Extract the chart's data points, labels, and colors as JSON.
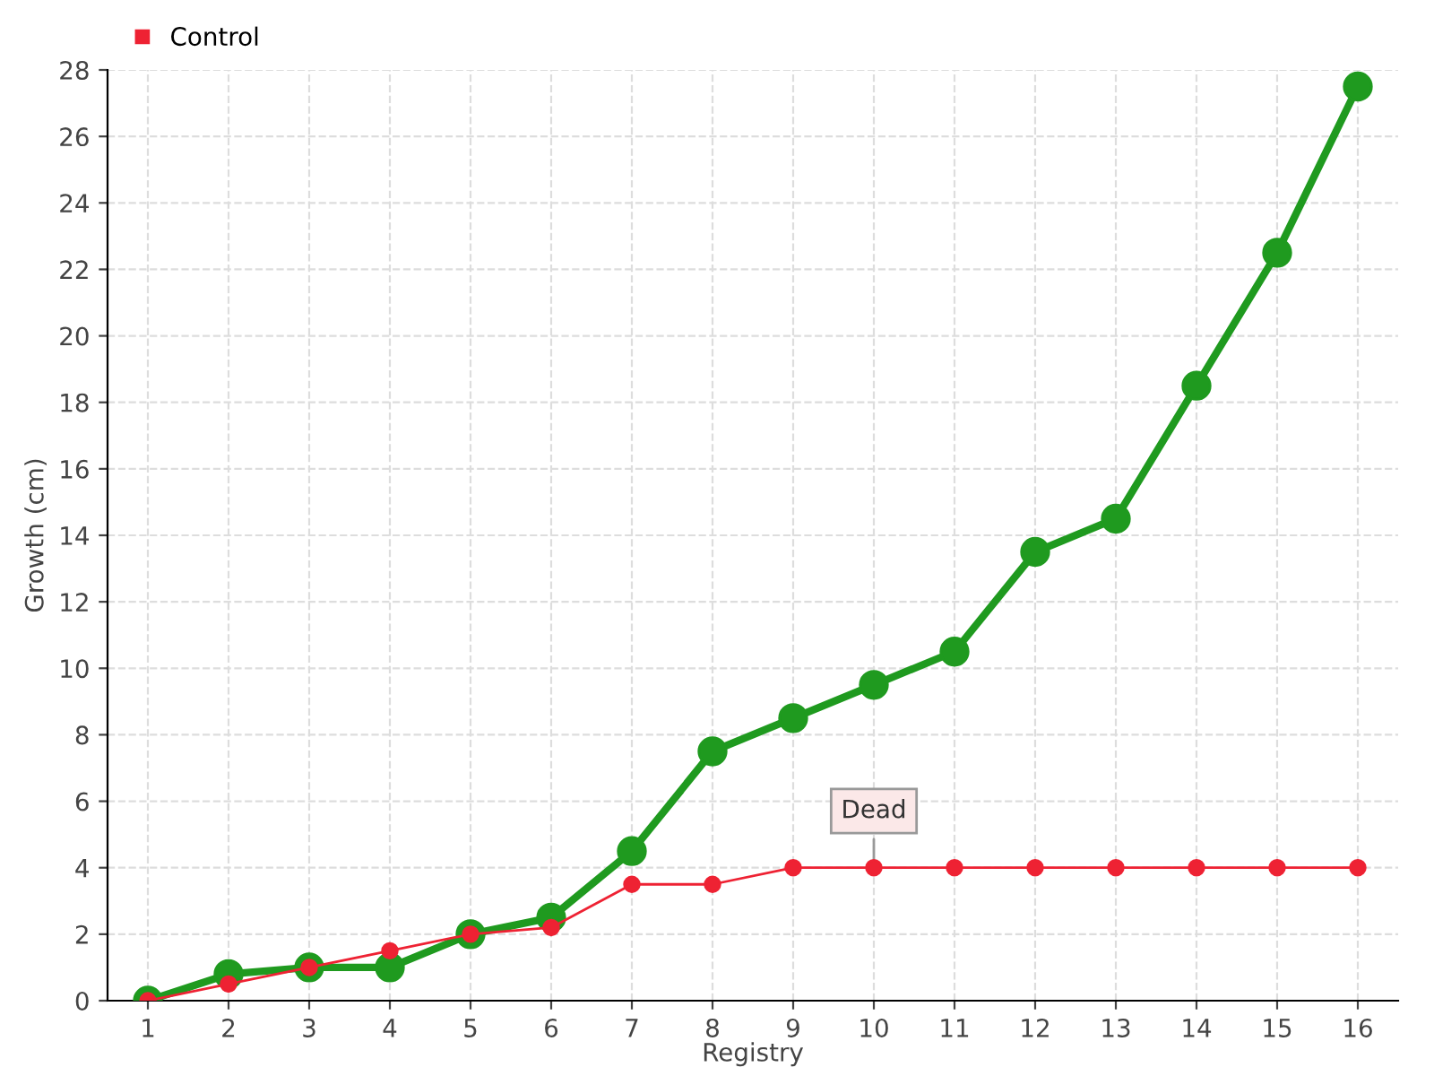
{
  "chart_data": {
    "type": "line",
    "xlabel": "Registry",
    "ylabel": "Growth (cm)",
    "x": [
      1,
      2,
      3,
      4,
      5,
      6,
      7,
      8,
      9,
      10,
      11,
      12,
      13,
      14,
      15,
      16
    ],
    "series": [
      {
        "color": "#1f9a1f",
        "values": [
          0,
          0.8,
          1.0,
          1.0,
          2.0,
          2.5,
          4.5,
          7.5,
          8.5,
          9.5,
          10.5,
          13.5,
          14.5,
          18.5,
          22.5,
          27.5
        ]
      },
      {
        "name": "Control",
        "color": "#ee2233",
        "values": [
          0,
          0.5,
          1.0,
          1.5,
          2.0,
          2.2,
          3.5,
          3.5,
          4,
          4,
          4,
          4,
          4,
          4,
          4,
          4
        ]
      }
    ],
    "annotations": [
      {
        "text": "Dead",
        "x": 10,
        "y": 4
      }
    ],
    "xlim": [
      0.5,
      16.5
    ],
    "xticks": [
      1,
      2,
      3,
      4,
      5,
      6,
      7,
      8,
      9,
      10,
      11,
      12,
      13,
      14,
      15,
      16
    ],
    "ylim": [
      0,
      28
    ],
    "yticks": [
      0,
      2,
      4,
      6,
      8,
      10,
      12,
      14,
      16,
      18,
      20,
      22,
      24,
      26,
      28
    ],
    "grid": true,
    "legend": "top left",
    "marker": "circle",
    "line_style": "solid"
  }
}
